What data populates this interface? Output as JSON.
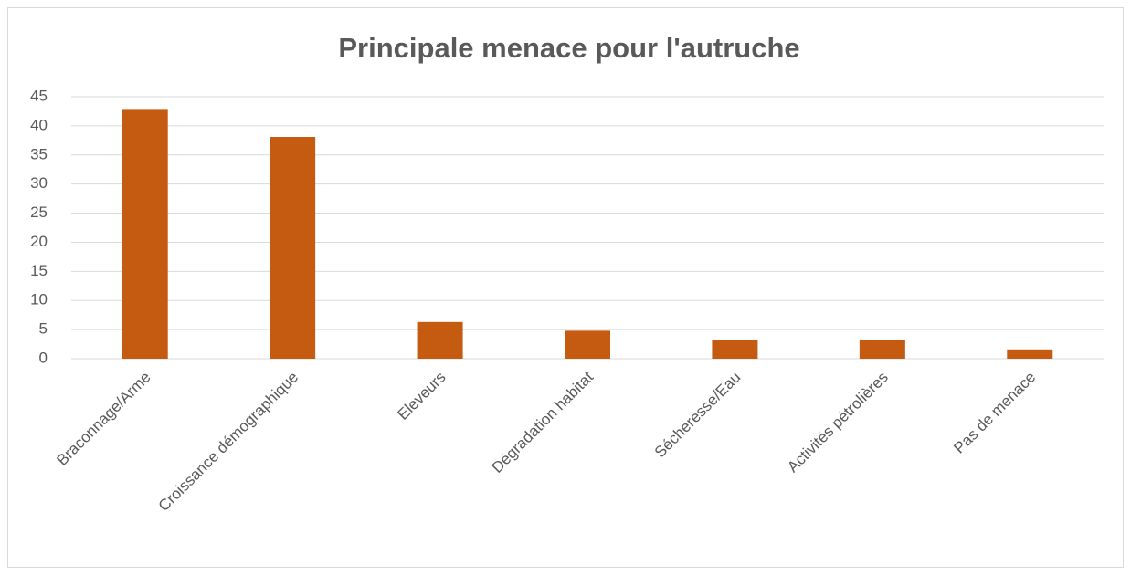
{
  "chart_data": {
    "type": "bar",
    "title": "Principale menace pour l'autruche",
    "categories": [
      "Braconnage/Arme",
      "Croissance démographique",
      "Eleveurs",
      "Dégradation habitat",
      "Sécheresse/Eau",
      "Activités pétrolières",
      "Pas de menace"
    ],
    "values": [
      42.9,
      38.1,
      6.3,
      4.8,
      3.2,
      3.2,
      1.6
    ],
    "color": "#c55a11",
    "ylim": [
      0,
      45
    ],
    "yticks": [
      0,
      5,
      10,
      15,
      20,
      25,
      30,
      35,
      40,
      45
    ],
    "grid": true
  }
}
